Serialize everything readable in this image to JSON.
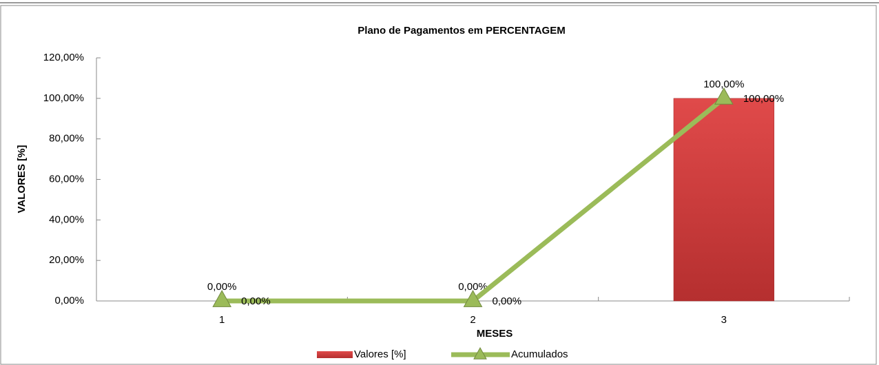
{
  "chart_data": {
    "type": "bar_line",
    "title": "Plano de Pagamentos em PERCENTAGEM",
    "x_label": "MESES",
    "y_label": "VALORES [%]",
    "categories": [
      "1",
      "2",
      "3"
    ],
    "series": [
      {
        "name": "Valores [%]",
        "type": "bar",
        "color": "#d94343",
        "values": [
          0,
          0,
          100
        ],
        "value_labels": [
          "0,00%",
          "0,00%",
          "100,00%"
        ]
      },
      {
        "name": "Acumulados",
        "type": "line",
        "color": "#9bbb59",
        "values": [
          0,
          0,
          100
        ],
        "value_labels": [
          "0,00%",
          "0,00%",
          "100,00%"
        ]
      }
    ],
    "ylim": [
      0,
      120
    ],
    "yticks": [
      {
        "value": 0,
        "label": "0,00%"
      },
      {
        "value": 20,
        "label": "20,00%"
      },
      {
        "value": 40,
        "label": "40,00%"
      },
      {
        "value": 60,
        "label": "60,00%"
      },
      {
        "value": 80,
        "label": "80,00%"
      },
      {
        "value": 100,
        "label": "100,00%"
      },
      {
        "value": 120,
        "label": "120,00%"
      }
    ],
    "legend": "bottom"
  }
}
